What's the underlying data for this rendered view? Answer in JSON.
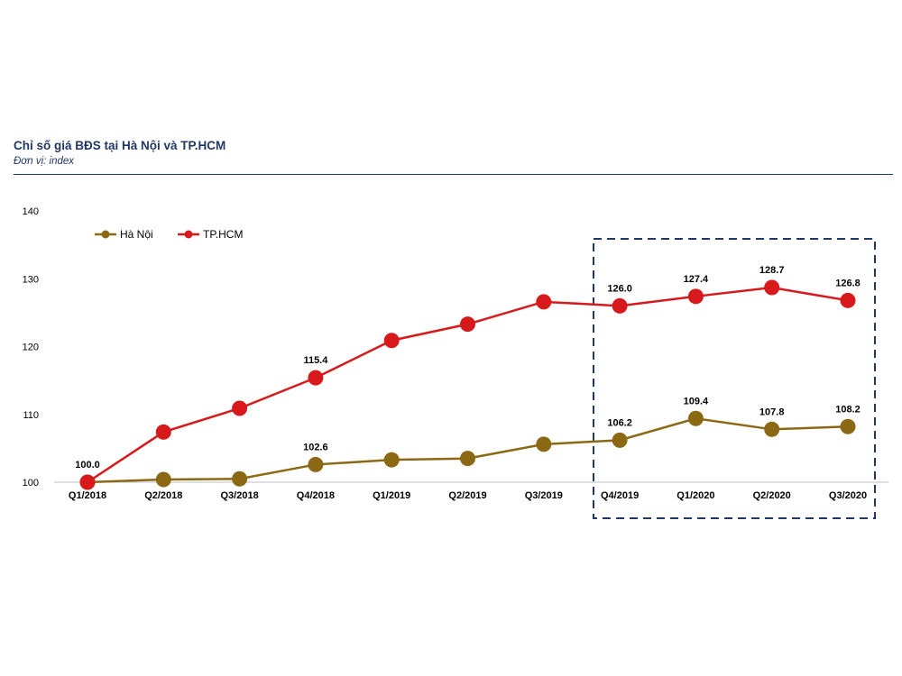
{
  "chart_data": {
    "type": "line",
    "title": "Chỉ số giá BĐS tại Hà Nội và TP.HCM",
    "subtitle": "Đơn vị: index",
    "categories": [
      "Q1/2018",
      "Q2/2018",
      "Q3/2018",
      "Q4/2018",
      "Q1/2019",
      "Q2/2019",
      "Q3/2019",
      "Q4/2019",
      "Q1/2020",
      "Q2/2020",
      "Q3/2020"
    ],
    "ylim": [
      100,
      140
    ],
    "yticks": [
      "100",
      "110",
      "120",
      "130",
      "140"
    ],
    "grid": false,
    "legend_position": "top-left",
    "highlight_box": "Q4/2019–Q3/2020",
    "series": [
      {
        "name": "Hà Nội",
        "color": "#8b6914",
        "values": [
          100.0,
          100.4,
          100.5,
          102.6,
          103.3,
          103.5,
          105.6,
          106.2,
          109.4,
          107.8,
          108.2
        ],
        "labels": [
          "",
          "",
          "",
          "102.6",
          "",
          "",
          "",
          "106.2",
          "109.4",
          "107.8",
          "108.2"
        ]
      },
      {
        "name": "TP.HCM",
        "color": "#d7191c",
        "values": [
          100.0,
          107.4,
          110.9,
          115.4,
          120.9,
          123.3,
          126.6,
          126.0,
          127.4,
          128.7,
          126.8
        ],
        "labels": [
          "100.0",
          "",
          "",
          "115.4",
          "",
          "",
          "",
          "126.0",
          "127.4",
          "128.7",
          "126.8"
        ]
      }
    ]
  }
}
